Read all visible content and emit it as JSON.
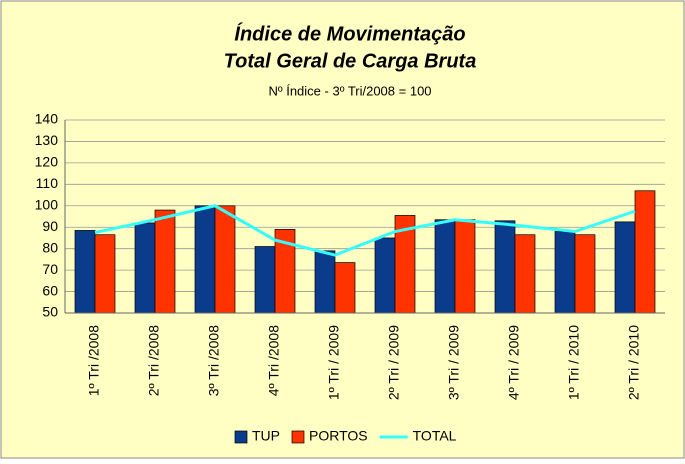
{
  "chart_data": {
    "type": "bar",
    "title": "Índice de Movimentação",
    "subtitle": "Total Geral de Carga Bruta",
    "note": "Nº Índice - 3º Tri/2008 = 100",
    "categories": [
      "1º Tri /2008",
      "2º Tri /2008",
      "3º Tri /2008",
      "4º Tri /2008",
      "1º Tri / 2009",
      "2º Tri / 2009",
      "3º Tri / 2009",
      "4º Tri / 2009",
      "1º Tri / 2010",
      "2º Tri / 2010"
    ],
    "series": [
      {
        "name": "TUP",
        "type": "bar",
        "color": "#0b3c8c",
        "values": [
          88.5,
          92,
          100,
          81,
          79,
          85,
          93.5,
          93,
          88,
          92.5
        ]
      },
      {
        "name": "PORTOS",
        "type": "bar",
        "color": "#ff3300",
        "values": [
          86.5,
          98,
          100,
          89,
          73.5,
          95.5,
          93.5,
          86.5,
          86.5,
          107
        ]
      },
      {
        "name": "TOTAL",
        "type": "line",
        "color": "#33ffff",
        "values": [
          87.5,
          93.5,
          100,
          84,
          77,
          88,
          93.5,
          91,
          88,
          97.5
        ]
      }
    ],
    "ylim": [
      50,
      140
    ],
    "yticks": [
      50,
      60,
      70,
      80,
      90,
      100,
      110,
      120,
      130,
      140
    ],
    "grid": true,
    "legend": "bottom"
  }
}
